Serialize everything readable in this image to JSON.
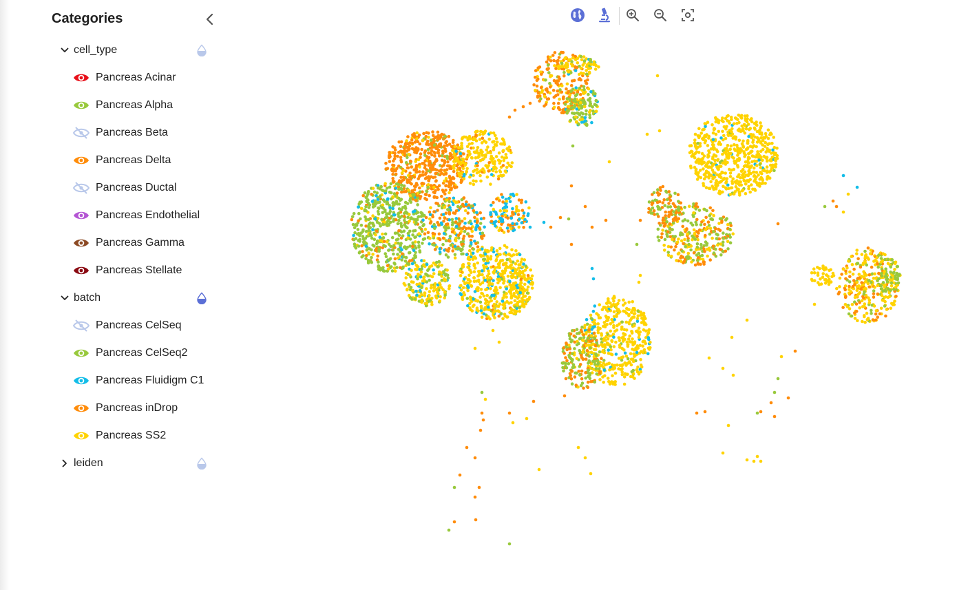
{
  "sidebar": {
    "title": "Categories",
    "groups": [
      {
        "label": "cell_type",
        "expanded": true,
        "items": [
          {
            "label": "Pancreas Acinar",
            "color": "#e8101a",
            "visible": true
          },
          {
            "label": "Pancreas Alpha",
            "color": "#98c93c",
            "visible": true
          },
          {
            "label": "Pancreas Beta",
            "color": "#b9c8ea",
            "visible": false
          },
          {
            "label": "Pancreas Delta",
            "color": "#ff8c0a",
            "visible": true
          },
          {
            "label": "Pancreas Ductal",
            "color": "#b9c8ea",
            "visible": false
          },
          {
            "label": "Pancreas Endothelial",
            "color": "#b455d4",
            "visible": true
          },
          {
            "label": "Pancreas Gamma",
            "color": "#8c4a24",
            "visible": true
          },
          {
            "label": "Pancreas Stellate",
            "color": "#8a0a12",
            "visible": true
          }
        ]
      },
      {
        "label": "batch",
        "expanded": true,
        "items": [
          {
            "label": "Pancreas CelSeq",
            "color": "#b9c8ea",
            "visible": false
          },
          {
            "label": "Pancreas CelSeq2",
            "color": "#98c93c",
            "visible": true
          },
          {
            "label": "Pancreas Fluidigm C1",
            "color": "#14bde8",
            "visible": true
          },
          {
            "label": "Pancreas inDrop",
            "color": "#ff8c0a",
            "visible": true
          },
          {
            "label": "Pancreas SS2",
            "color": "#ffd300",
            "visible": true
          }
        ]
      },
      {
        "label": "leiden",
        "expanded": false,
        "items": []
      }
    ]
  },
  "toolbar": {
    "buttons": [
      {
        "icon": "globe-icon",
        "active": true
      },
      {
        "icon": "microscope-icon",
        "active": true
      },
      {
        "icon": "zoom-in-icon",
        "active": false
      },
      {
        "icon": "zoom-out-icon",
        "active": false
      },
      {
        "icon": "fit-view-icon",
        "active": false
      }
    ]
  },
  "colors": {
    "accent": "#5b6fd6",
    "accent_light": "#b9c8ea",
    "icon_gray": "#555555"
  }
}
